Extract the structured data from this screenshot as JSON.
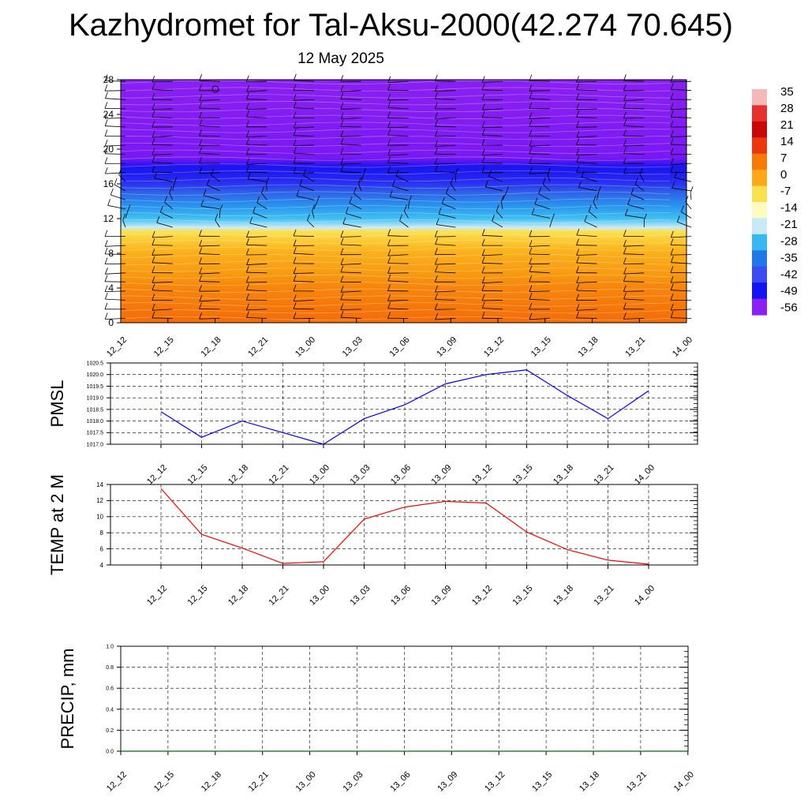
{
  "header": {
    "title": "Kazhydromet for Tal-Aksu-2000(42.274 70.645)",
    "subtitle": "12 May 2025"
  },
  "chart_data": [
    {
      "type": "heatmap",
      "description_of_content": "time-height temperature shading with wind barbs",
      "x": [
        "12_12",
        "12_15",
        "12_18",
        "12_21",
        "13_00",
        "13_03",
        "13_06",
        "13_09",
        "13_12",
        "13_15",
        "13_18",
        "13_21",
        "14_00"
      ],
      "y_ticks": [
        0,
        4,
        8,
        12,
        16,
        20,
        24,
        28
      ],
      "ylim": [
        0,
        28
      ],
      "colorbar_labels": [
        "35",
        "28",
        "21",
        "14",
        "7",
        "0",
        "-7",
        "-14",
        "-21",
        "-28",
        "-35",
        "-42",
        "-49",
        "-56"
      ],
      "colorbar_colors": [
        "#f4b8b8",
        "#e53030",
        "#c80808",
        "#e8380c",
        "#f87808",
        "#fca818",
        "#fde050",
        "#fffac0",
        "#c8eaf8",
        "#38b8f0",
        "#2078e8",
        "#3c4cf0",
        "#1414f0",
        "#8a20f2"
      ],
      "levels": [
        {
          "height": 0,
          "temp": 14
        },
        {
          "height": 4,
          "temp": 10
        },
        {
          "height": 8,
          "temp": 2
        },
        {
          "height": 10.5,
          "temp": -7
        },
        {
          "height": 11,
          "temp": -18
        },
        {
          "height": 13,
          "temp": -30
        },
        {
          "height": 16,
          "temp": -45
        },
        {
          "height": 19,
          "temp": -56
        },
        {
          "height": 24,
          "temp": -60
        },
        {
          "height": 28,
          "temp": -62
        }
      ]
    },
    {
      "type": "line",
      "ylabel": "PMSL",
      "x": [
        "12_12",
        "12_15",
        "12_18",
        "12_21",
        "13_00",
        "13_03",
        "13_06",
        "13_09",
        "13_12",
        "13_15",
        "13_18",
        "13_21",
        "14_00"
      ],
      "values": [
        1018.4,
        1017.3,
        1018.0,
        1017.5,
        1017.0,
        1018.1,
        1018.7,
        1019.6,
        1020.0,
        1020.2,
        1019.1,
        1018.1,
        1019.3
      ],
      "ylim": [
        1017.0,
        1020.5
      ],
      "y_ticks": [
        "1017.0",
        "1017.5",
        "1018.0",
        "1018.5",
        "1019.0",
        "1019.5",
        "1020.0",
        "1020.5"
      ],
      "color": "#0000ff",
      "grid": true
    },
    {
      "type": "line",
      "ylabel": "TEMP at 2 M",
      "x": [
        "12_12",
        "12_15",
        "12_18",
        "12_21",
        "13_00",
        "13_03",
        "13_06",
        "13_09",
        "13_12",
        "13_15",
        "13_18",
        "13_21",
        "14_00"
      ],
      "values": [
        13.5,
        7.8,
        6.1,
        4.2,
        4.4,
        9.7,
        11.2,
        11.9,
        11.7,
        8.1,
        5.9,
        4.6,
        4.1
      ],
      "ylim": [
        4,
        14
      ],
      "y_ticks": [
        "4",
        "6",
        "8",
        "10",
        "12",
        "14"
      ],
      "color": "#ff0000",
      "grid": true
    },
    {
      "type": "line",
      "ylabel": "PRECIP, mm",
      "x": [
        "12_12",
        "12_15",
        "12_18",
        "12_21",
        "13_00",
        "13_03",
        "13_06",
        "13_09",
        "13_12",
        "13_15",
        "13_18",
        "13_21",
        "14_00"
      ],
      "values": [
        0,
        0,
        0,
        0,
        0,
        0,
        0,
        0,
        0,
        0,
        0,
        0,
        0
      ],
      "ylim": [
        0,
        1
      ],
      "y_ticks": [
        "0.0",
        "0.2",
        "0.4",
        "0.6",
        "0.8",
        "1.0"
      ],
      "color": "#007000",
      "grid": true
    }
  ]
}
